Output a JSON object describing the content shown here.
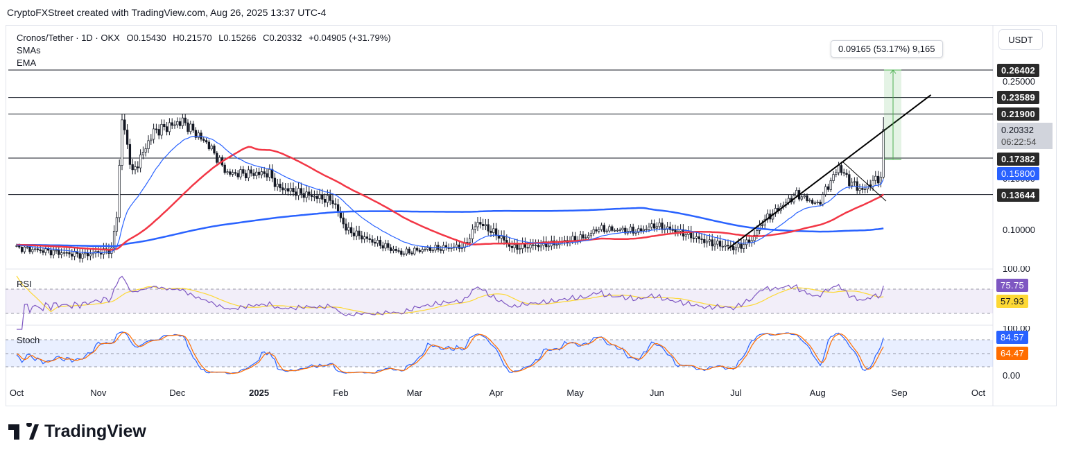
{
  "credit": "CryptoFXStreet created with TradingView.com, Aug 26, 2025 13:37 UTC-4",
  "legend": {
    "symbol": "Cronos/Tether · 1D · OKX",
    "open": "O0.15430",
    "high": "H0.21570",
    "low": "L0.15266",
    "close": "C0.20332",
    "change": "+0.04905 (+31.79%)",
    "sma": "SMAs",
    "ema": "EMA"
  },
  "currency_button": "USDT",
  "measure": {
    "text": "0.09165 (53.17%) 9,165",
    "from": 0.17237,
    "to": 0.26402
  },
  "price_axis": {
    "labels": [
      "0.25000",
      "0.10000",
      "0.15000"
    ],
    "levels": [
      "0.26402",
      "0.23589",
      "0.21900",
      "0.17382",
      "0.13644"
    ],
    "last_price": "0.20332",
    "countdown": "06:22:54",
    "sma_tag": "0.15800"
  },
  "rsi": {
    "title": "RSI",
    "top": "100.00",
    "value": "75.75",
    "signal": "57.93"
  },
  "stoch": {
    "title": "Stoch",
    "top": "100.00",
    "bottom": "0.00",
    "k": "84.57",
    "d": "64.47"
  },
  "logo": "TradingView",
  "colors": {
    "up": "#131722",
    "down": "#131722",
    "sma_fast": "#f23645",
    "sma_slow": "#2962ff",
    "ema": "#2962ff",
    "rsi": "#7e57c2",
    "rsi_ma": "#fdd835",
    "stoch_k": "#2962ff",
    "stoch_d": "#ff6d00"
  },
  "chart_data": {
    "type": "candlestick",
    "title": "Cronos/Tether · 1D · OKX",
    "x_unit": "days since 2024-10-01",
    "x_ticks": [
      {
        "label": "Oct",
        "day": 0
      },
      {
        "label": "Nov",
        "day": 31
      },
      {
        "label": "Dec",
        "day": 61
      },
      {
        "label": "2025",
        "day": 92
      },
      {
        "label": "Feb",
        "day": 123
      },
      {
        "label": "Mar",
        "day": 151
      },
      {
        "label": "Apr",
        "day": 182
      },
      {
        "label": "May",
        "day": 212
      },
      {
        "label": "Jun",
        "day": 243
      },
      {
        "label": "Jul",
        "day": 273
      },
      {
        "label": "Aug",
        "day": 304
      },
      {
        "label": "Sep",
        "day": 335
      },
      {
        "label": "Oct",
        "day": 365
      }
    ],
    "close_keypoints": [
      [
        0,
        0.082
      ],
      [
        25,
        0.0744
      ],
      [
        36,
        0.08
      ],
      [
        38,
        0.115
      ],
      [
        40,
        0.215
      ],
      [
        44,
        0.158
      ],
      [
        52,
        0.201
      ],
      [
        63,
        0.2115
      ],
      [
        73,
        0.1866
      ],
      [
        80,
        0.158
      ],
      [
        96,
        0.158
      ],
      [
        99,
        0.144
      ],
      [
        109,
        0.137
      ],
      [
        120,
        0.13
      ],
      [
        125,
        0.101
      ],
      [
        130,
        0.0943
      ],
      [
        146,
        0.0765
      ],
      [
        154,
        0.08
      ],
      [
        170,
        0.0836
      ],
      [
        175,
        0.1085
      ],
      [
        184,
        0.092
      ],
      [
        188,
        0.082
      ],
      [
        204,
        0.086
      ],
      [
        217,
        0.094
      ],
      [
        220,
        0.1014
      ],
      [
        236,
        0.099
      ],
      [
        242,
        0.105
      ],
      [
        252,
        0.098
      ],
      [
        262,
        0.088
      ],
      [
        273,
        0.0815
      ],
      [
        279,
        0.09
      ],
      [
        283,
        0.1085
      ],
      [
        296,
        0.137
      ],
      [
        304,
        0.126
      ],
      [
        312,
        0.165
      ],
      [
        316,
        0.15
      ],
      [
        321,
        0.1405
      ],
      [
        326,
        0.152
      ],
      [
        328,
        0.1543
      ]
    ],
    "last_candle": {
      "open": 0.1543,
      "high": 0.2157,
      "low": 0.15266,
      "close": 0.20332
    },
    "levels": [
      0.26402,
      0.23589,
      0.219,
      0.17382,
      0.13644
    ],
    "trendline": [
      [
        270,
        0.081
      ],
      [
        347,
        0.2385
      ]
    ],
    "ylim": [
      0.07,
      0.27
    ],
    "indicators": [
      "SMA 50",
      "SMA 200",
      "EMA 20",
      "RSI 14",
      "Stoch 14 3 3"
    ]
  }
}
